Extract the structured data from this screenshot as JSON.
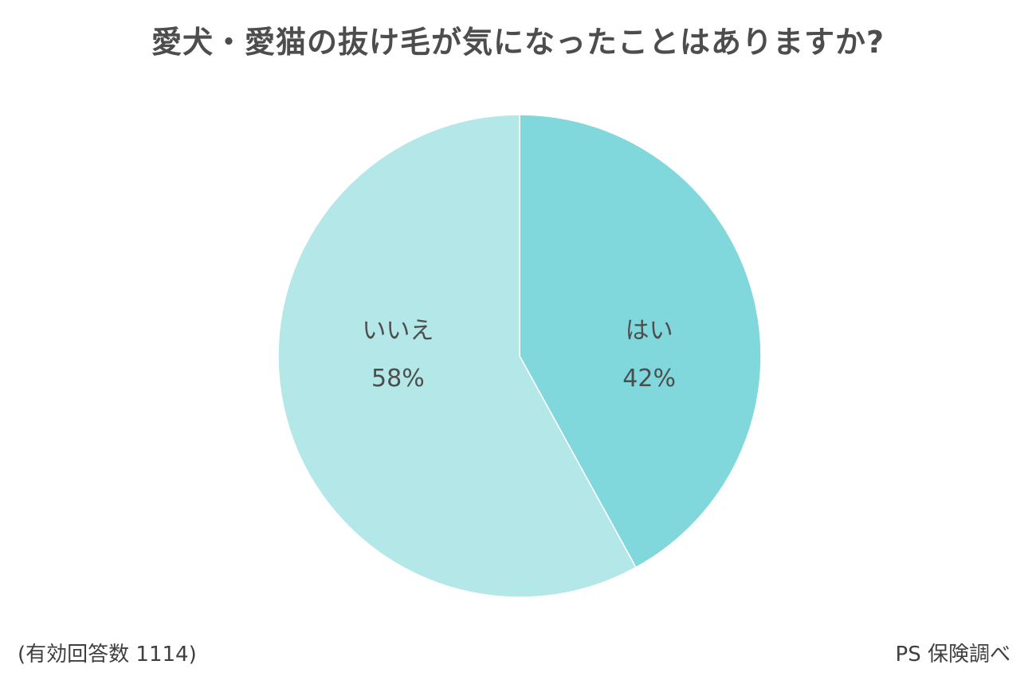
{
  "title": "愛犬・愛猫の抜け毛が気になったことはありますか?",
  "chart_data": {
    "type": "pie",
    "title": "愛犬・愛猫の抜け毛が気になったことはありますか?",
    "slices": [
      {
        "label": "はい",
        "value": 42,
        "value_label": "42%",
        "color": "#80d8dc"
      },
      {
        "label": "いいえ",
        "value": 58,
        "value_label": "58%",
        "color": "#b4e7e8"
      }
    ],
    "start": "12 o'clock",
    "direction": "clockwise",
    "legend": "none"
  },
  "footnote_left": "(有効回答数 1114)",
  "footnote_right": "PS 保険調べ"
}
